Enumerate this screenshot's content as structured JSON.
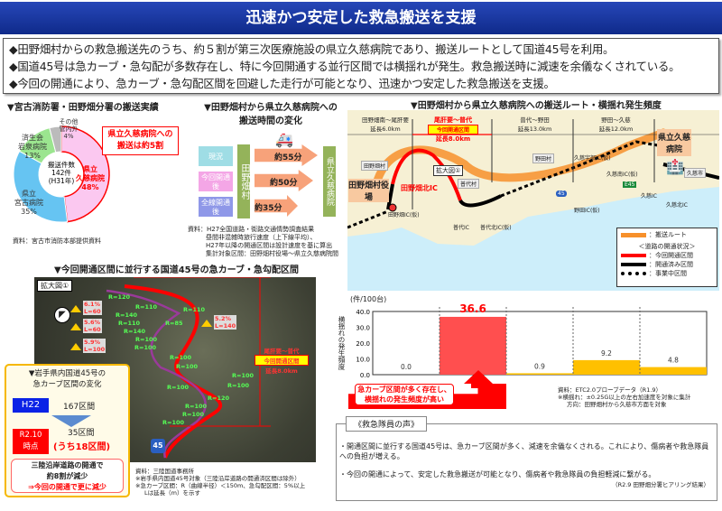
{
  "header": {
    "title": "迅速かつ安定した救急搬送を支援"
  },
  "bullets": [
    "◆田野畑村からの救急搬送先のうち、約５割が第三次医療施設の県立久慈病院であり、搬送ルートとして国道45号を利用。",
    "◆国道45号は急カーブ・急勾配が多数存在し、特に今回開通する並行区間では横揺れが発生。救急搬送時に減速を余儀なくされている。",
    "◆今回の開通により、急カーブ・急勾配区間を回避した走行が可能となり、迅速かつ安定した救急搬送を支援。"
  ],
  "pie": {
    "title": "▼宮古消防署・田野畑分署の搬送実績",
    "center": [
      "搬送件数",
      "142件",
      "(H31年)"
    ],
    "callout": [
      "県立久慈病院への",
      "搬送は約5割"
    ],
    "source": "資料：宮古市消防本部提供資料",
    "slices": [
      {
        "label": "県立\n久慈病院",
        "value": 48,
        "text": "48%",
        "color": "#fbc8f0"
      },
      {
        "label": "県立\n宮古病院",
        "value": 35,
        "text": "35%",
        "color": "#66c4f2"
      },
      {
        "label": "済生会\n岩泉病院",
        "value": 13,
        "text": "13%",
        "color": "#9be58f"
      },
      {
        "label": "その他\n管内外",
        "value": 4,
        "text": "4%",
        "color": "#bbbbbb"
      }
    ]
  },
  "time": {
    "title": [
      "▼田野畑村から県立久慈病院への",
      "搬送時間の変化"
    ],
    "origin": "田野畑村",
    "dest": "県立久慈病院",
    "rows": [
      {
        "label": "現況",
        "time": "約55分",
        "color": "#9fdde5"
      },
      {
        "label": "今回開通後",
        "time": "約50分",
        "color": "#f4a6e6"
      },
      {
        "label": "全線開通後",
        "time": "約35分",
        "color": "#8f98e8"
      }
    ],
    "source": [
      "資料：H27全国道路・街路交通情勢調査結果",
      "昼間非混雑時旅行速度（上下線平均）、",
      "H27年以降の開通区間は設計速度を基に算出",
      "集計対象区間：田野畑村役場～県立久慈病院間"
    ]
  },
  "map": {
    "title": "▼田野畑村から県立久慈病院への搬送ルート・横揺れ発生頻度",
    "sections": [
      {
        "name": "田野畑南～尾肝要",
        "length": "延長6.0km"
      },
      {
        "name": "尾肝要～普代",
        "badge": "今回開通区間",
        "length": "延長8.0km"
      },
      {
        "name": "普代～野田",
        "length": "延長13.0km"
      },
      {
        "name": "野田～久慈",
        "length": "延長12.0km"
      }
    ],
    "places": {
      "start": "田野畑村役場",
      "hospital": "県立久慈病院",
      "zoom": "拡大図①",
      "ic": [
        "田野畑北IC",
        "田野畑IC(仮)",
        "普代IC",
        "普代北IC(仮)",
        "野田IC(仮)",
        "久慈南IC(仮)",
        "久慈宇部IC(仮)",
        "久慈IC",
        "久慈北IC"
      ],
      "towns": [
        "田野畑村",
        "普代村",
        "野田村",
        "久慈市"
      ],
      "e45": "E45",
      "r45": "45"
    },
    "legend": {
      "route": "：搬送ルート",
      "status_title": "＜道路の開通状況＞",
      "items": [
        "：今回開通区間",
        "：開通済み区間",
        "：事業中区間"
      ]
    }
  },
  "chart_data": {
    "type": "bar",
    "ylabel": "横揺れの発生頻度",
    "unit": "(件/100台)",
    "ylim": [
      0,
      40
    ],
    "yticks": [
      "0.0",
      "10.0",
      "20.0",
      "30.0",
      "40.0"
    ],
    "values": [
      0.0,
      36.6,
      0.9,
      9.2,
      4.8
    ],
    "labels": [
      "0.0",
      "36.6",
      "0.9",
      "9.2",
      "4.8"
    ],
    "colors": [
      "#ffffff",
      "#ff4f4f",
      "#ffc000",
      "#ffc000",
      "#ffc000"
    ],
    "callout": [
      "急カーブ区間が多く存在し、",
      "横揺れの発生頻度が高い"
    ],
    "source": [
      "資料：ETC2.0プローブデータ（R1.9）",
      "※横揺れ：±0.25G以上の左右加速度を対象に集計",
      "方向：田野畑村から久慈市方面を対象"
    ]
  },
  "aerial": {
    "title": "▼今回開通区間に並行する国道45号の急カーブ・急勾配区間",
    "zoom": "拡大図①",
    "radii": [
      "R=120",
      "R=110",
      "R=110",
      "R=140",
      "R=110",
      "R=85",
      "R=140",
      "R=100",
      "R=100",
      "R=100",
      "R=100",
      "R=100",
      "R=100",
      "R=100",
      "R=120",
      "R=100",
      "R=100",
      "R=100"
    ],
    "grades": [
      "6.1%\nL=60",
      "5.6%\nL=60",
      "5.9%\nL=100",
      "5.2%\nL=140"
    ],
    "section": [
      "尾肝要～普代",
      "今回開通区間",
      "延長8.0km"
    ],
    "source": [
      "資料：三陸国道事務所",
      "※岩手県内国道45号対象（三陸沿岸道路の開通済区間は除外）",
      "※急カーブ区間：R（曲線半径）＜150m、急勾配区間：5%以上",
      "Lは延長（m）を示す"
    ]
  },
  "curves": {
    "title": [
      "▼岩手県内国道45号の",
      "急カーブ区間の変化"
    ],
    "before_tag": "H22",
    "before": "167区間",
    "after_tag": "R2.10\n時点",
    "after": "35区間",
    "after_sub": "(うち18区間)",
    "note": [
      "三陸沿岸道路の開通で",
      "約8割が減少",
      "⇒今回の開通で更に減少"
    ]
  },
  "voice": {
    "title": "《救急隊員の声》",
    "items": [
      "・開通区間に並行する国道45号は、急カーブ区間が多く、減速を余儀なくされる。これにより、傷病者や救急隊員への負担が増える。",
      "・今回の開通によって、安定した救急搬送が可能となり、傷病者や救急隊員の負担軽減に繋がる。"
    ],
    "source": "（R2.9 田野畑分署ヒアリング結果）"
  }
}
